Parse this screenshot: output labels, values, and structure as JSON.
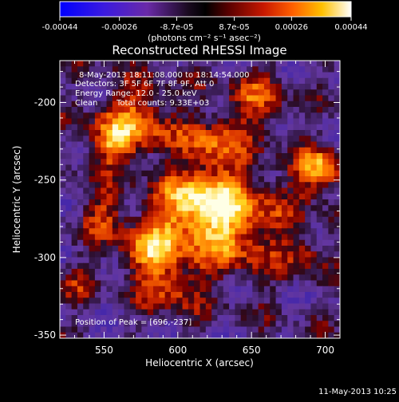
{
  "colorbar": {
    "tick_labels": [
      "-0.00044",
      "-0.00026",
      "-8.7e-05",
      "8.7e-05",
      "0.00026",
      "0.00044"
    ],
    "tick_values": [
      -0.00044,
      -0.00026,
      -8.7e-05,
      8.7e-05,
      0.00026,
      0.00044
    ],
    "range": [
      -0.00044,
      0.00044
    ],
    "units": "(photons cm⁻² s⁻¹ asec⁻²)"
  },
  "chart_data": {
    "type": "heatmap",
    "title": "Reconstructed RHESSI Image",
    "xlabel": "Heliocentric X (arcsec)",
    "ylabel": "Heliocentric Y (arcsec)",
    "xlim": [
      520,
      710
    ],
    "ylim": [
      -352,
      -173
    ],
    "x_tick_labels": [
      "550",
      "600",
      "650",
      "700"
    ],
    "x_ticks": [
      550,
      600,
      650,
      700
    ],
    "y_tick_labels": [
      "-200",
      "-250",
      "-300",
      "-350"
    ],
    "y_ticks": [
      -200,
      -250,
      -300,
      -350
    ],
    "annotations": {
      "time_range": "8-May-2013 18:11:08.000 to 18:14:54.000",
      "detectors": "Detectors: 3F 5F 6F 7F 8F 9F, Att 0",
      "energy_range": "Energy Range: 12.0 - 25.0 keV",
      "clean": "Clean",
      "total_counts": "Total counts: 9.33E+03",
      "peak": "Position of Peak = [696,-237]"
    },
    "peak_position": [
      696,
      -237
    ],
    "colormap_colors": [
      "#0000ff",
      "#5a2fd8",
      "#6a3aa0",
      "#000000",
      "#8a0000",
      "#d02000",
      "#ff8000",
      "#ffe000",
      "#ffffff"
    ]
  },
  "footer": {
    "date": "11-May-2013 10:25"
  }
}
